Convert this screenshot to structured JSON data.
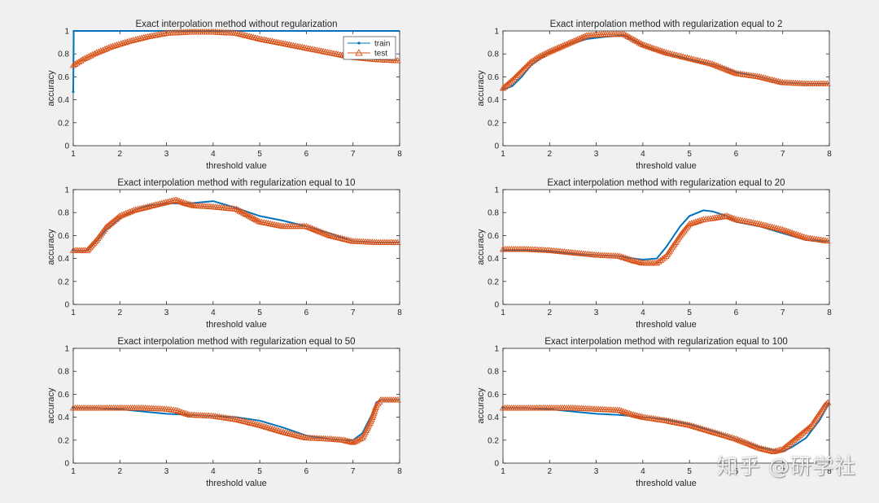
{
  "colors": {
    "train": "#0072bd",
    "test": "#d95319"
  },
  "watermark": "知乎 @研学社",
  "chart_data": [
    {
      "type": "line",
      "title": "Exact interpolation method without regularization",
      "xlabel": "threshold value",
      "ylabel": "accuracy",
      "xlim": [
        1,
        8
      ],
      "ylim": [
        0,
        1
      ],
      "xticks": [
        "1",
        "2",
        "3",
        "4",
        "5",
        "6",
        "7",
        "8"
      ],
      "yticks": [
        "0",
        "0.2",
        "0.4",
        "0.6",
        "0.8",
        "1"
      ],
      "legend": {
        "position": "top-right",
        "entries": [
          "train",
          "test"
        ]
      },
      "series": [
        {
          "name": "train",
          "x": [
            1,
            1.01,
            1.02,
            8
          ],
          "y": [
            0.47,
            1,
            1,
            1
          ]
        },
        {
          "name": "test",
          "x": [
            1,
            1.2,
            1.5,
            1.8,
            2.2,
            2.6,
            3.0,
            3.5,
            4.0,
            4.5,
            5.0,
            5.5,
            6.0,
            6.5,
            7.0,
            7.5,
            8.0
          ],
          "y": [
            0.7,
            0.75,
            0.81,
            0.86,
            0.91,
            0.95,
            0.98,
            0.99,
            0.99,
            0.98,
            0.93,
            0.89,
            0.85,
            0.81,
            0.77,
            0.75,
            0.74
          ]
        }
      ]
    },
    {
      "type": "line",
      "title": "Exact interpolation method with regularization equal to 2",
      "xlabel": "threshold value",
      "ylabel": "accuracy",
      "xlim": [
        1,
        8
      ],
      "ylim": [
        0,
        1
      ],
      "xticks": [
        "1",
        "2",
        "3",
        "4",
        "5",
        "6",
        "7",
        "8"
      ],
      "yticks": [
        "0",
        "0.2",
        "0.4",
        "0.6",
        "0.8",
        "1"
      ],
      "series": [
        {
          "name": "train",
          "x": [
            1,
            1.2,
            1.4,
            1.6,
            1.8,
            2.0,
            2.4,
            2.8,
            3.2,
            3.6,
            4.0,
            4.5,
            5.0,
            5.5,
            6.0,
            6.5,
            7.0,
            7.5,
            8.0
          ],
          "y": [
            0.49,
            0.52,
            0.6,
            0.7,
            0.76,
            0.82,
            0.88,
            0.93,
            0.95,
            0.96,
            0.87,
            0.81,
            0.75,
            0.71,
            0.64,
            0.6,
            0.55,
            0.54,
            0.54
          ]
        },
        {
          "name": "test",
          "x": [
            1,
            1.2,
            1.4,
            1.6,
            1.8,
            2.0,
            2.4,
            2.8,
            3.2,
            3.6,
            4.0,
            4.5,
            5.0,
            5.5,
            6.0,
            6.5,
            7.0,
            7.5,
            8.0
          ],
          "y": [
            0.5,
            0.57,
            0.65,
            0.73,
            0.78,
            0.82,
            0.89,
            0.96,
            0.97,
            0.97,
            0.88,
            0.81,
            0.76,
            0.71,
            0.63,
            0.6,
            0.55,
            0.54,
            0.54
          ]
        }
      ]
    },
    {
      "type": "line",
      "title": "Exact interpolation method with regularization equal to 10",
      "xlabel": "threshold value",
      "ylabel": "accuracy",
      "xlim": [
        1,
        8
      ],
      "ylim": [
        0,
        1
      ],
      "xticks": [
        "1",
        "2",
        "3",
        "4",
        "5",
        "6",
        "7",
        "8"
      ],
      "yticks": [
        "0",
        "0.2",
        "0.4",
        "0.6",
        "0.8",
        "1"
      ],
      "series": [
        {
          "name": "train",
          "x": [
            1,
            1.3,
            1.5,
            1.7,
            2.0,
            2.3,
            2.6,
            3.0,
            3.5,
            4.0,
            4.5,
            5.0,
            5.5,
            6.0,
            6.5,
            7.0,
            7.5,
            8.0
          ],
          "y": [
            0.47,
            0.47,
            0.55,
            0.65,
            0.75,
            0.82,
            0.86,
            0.88,
            0.88,
            0.9,
            0.84,
            0.77,
            0.73,
            0.68,
            0.62,
            0.55,
            0.54,
            0.54
          ]
        },
        {
          "name": "test",
          "x": [
            1,
            1.3,
            1.5,
            1.7,
            2.0,
            2.3,
            2.6,
            2.9,
            3.2,
            3.4,
            3.6,
            4.0,
            4.5,
            5.0,
            5.5,
            6.0,
            6.5,
            7.0,
            7.5,
            8.0
          ],
          "y": [
            0.47,
            0.47,
            0.56,
            0.67,
            0.77,
            0.82,
            0.85,
            0.88,
            0.91,
            0.88,
            0.86,
            0.85,
            0.83,
            0.72,
            0.68,
            0.68,
            0.6,
            0.55,
            0.54,
            0.54
          ]
        }
      ]
    },
    {
      "type": "line",
      "title": "Exact interpolation method with regularization equal to 20",
      "xlabel": "threshold value",
      "ylabel": "accuracy",
      "xlim": [
        1,
        8
      ],
      "ylim": [
        0,
        1
      ],
      "xticks": [
        "1",
        "2",
        "3",
        "4",
        "5",
        "6",
        "7",
        "8"
      ],
      "yticks": [
        "0",
        "0.2",
        "0.4",
        "0.6",
        "0.8",
        "1"
      ],
      "series": [
        {
          "name": "train",
          "x": [
            1,
            1.5,
            2.0,
            2.5,
            3.0,
            3.5,
            3.8,
            4.0,
            4.3,
            4.5,
            4.8,
            5.0,
            5.3,
            5.5,
            5.8,
            6.0,
            6.5,
            7.0,
            7.5,
            8.0
          ],
          "y": [
            0.47,
            0.47,
            0.46,
            0.44,
            0.43,
            0.42,
            0.4,
            0.39,
            0.4,
            0.5,
            0.68,
            0.77,
            0.82,
            0.81,
            0.77,
            0.72,
            0.68,
            0.62,
            0.56,
            0.55
          ]
        },
        {
          "name": "test",
          "x": [
            1,
            1.5,
            2.0,
            2.5,
            3.0,
            3.5,
            3.8,
            4.0,
            4.3,
            4.5,
            4.8,
            5.0,
            5.3,
            5.5,
            5.8,
            6.0,
            6.5,
            7.0,
            7.5,
            8.0
          ],
          "y": [
            0.48,
            0.48,
            0.47,
            0.45,
            0.43,
            0.42,
            0.38,
            0.36,
            0.36,
            0.42,
            0.6,
            0.7,
            0.74,
            0.75,
            0.77,
            0.74,
            0.7,
            0.65,
            0.58,
            0.55
          ]
        }
      ]
    },
    {
      "type": "line",
      "title": "Exact interpolation method with regularization equal to 50",
      "xlabel": "threshold value",
      "ylabel": "accuracy",
      "xlim": [
        1,
        8
      ],
      "ylim": [
        0,
        1
      ],
      "xticks": [
        "1",
        "2",
        "3",
        "4",
        "5",
        "6",
        "7",
        "8"
      ],
      "yticks": [
        "0",
        "0.2",
        "0.4",
        "0.6",
        "0.8",
        "1"
      ],
      "series": [
        {
          "name": "train",
          "x": [
            1,
            1.5,
            2.0,
            2.5,
            3.0,
            3.5,
            4.0,
            4.5,
            5.0,
            5.5,
            6.0,
            6.5,
            6.8,
            7.0,
            7.2,
            7.4,
            7.5,
            7.6,
            8.0
          ],
          "y": [
            0.48,
            0.48,
            0.47,
            0.45,
            0.43,
            0.42,
            0.41,
            0.4,
            0.37,
            0.31,
            0.24,
            0.21,
            0.2,
            0.2,
            0.26,
            0.42,
            0.53,
            0.55,
            0.55
          ]
        },
        {
          "name": "test",
          "x": [
            1,
            1.5,
            2.0,
            2.5,
            3.0,
            3.2,
            3.5,
            4.0,
            4.5,
            5.0,
            5.5,
            6.0,
            6.5,
            6.8,
            7.0,
            7.2,
            7.4,
            7.5,
            7.6,
            8.0
          ],
          "y": [
            0.48,
            0.48,
            0.48,
            0.48,
            0.47,
            0.46,
            0.42,
            0.41,
            0.38,
            0.33,
            0.27,
            0.22,
            0.21,
            0.2,
            0.18,
            0.22,
            0.38,
            0.5,
            0.55,
            0.55
          ]
        }
      ]
    },
    {
      "type": "line",
      "title": "Exact interpolation method with regularization equal to 100",
      "xlabel": "threshold value",
      "ylabel": "accuracy",
      "xlim": [
        1,
        8
      ],
      "ylim": [
        0,
        1
      ],
      "xticks": [
        "1",
        "2",
        "3",
        "4",
        "5",
        "6",
        "7",
        "8"
      ],
      "yticks": [
        "0",
        "0.2",
        "0.4",
        "0.6",
        "0.8",
        "1"
      ],
      "series": [
        {
          "name": "train",
          "x": [
            1,
            1.5,
            2.0,
            2.5,
            3.0,
            3.5,
            4.0,
            4.5,
            5.0,
            5.5,
            6.0,
            6.5,
            7.0,
            7.2,
            7.5,
            7.8,
            8.0
          ],
          "y": [
            0.48,
            0.48,
            0.47,
            0.45,
            0.43,
            0.42,
            0.4,
            0.38,
            0.34,
            0.28,
            0.21,
            0.14,
            0.1,
            0.14,
            0.22,
            0.38,
            0.53
          ]
        },
        {
          "name": "test",
          "x": [
            1,
            1.5,
            2.0,
            2.5,
            3.0,
            3.5,
            3.8,
            4.0,
            4.5,
            5.0,
            5.5,
            6.0,
            6.5,
            6.8,
            7.0,
            7.3,
            7.6,
            7.9,
            8.0
          ],
          "y": [
            0.48,
            0.48,
            0.48,
            0.48,
            0.47,
            0.46,
            0.42,
            0.4,
            0.37,
            0.33,
            0.27,
            0.21,
            0.13,
            0.1,
            0.12,
            0.22,
            0.32,
            0.5,
            0.54
          ]
        }
      ]
    }
  ]
}
